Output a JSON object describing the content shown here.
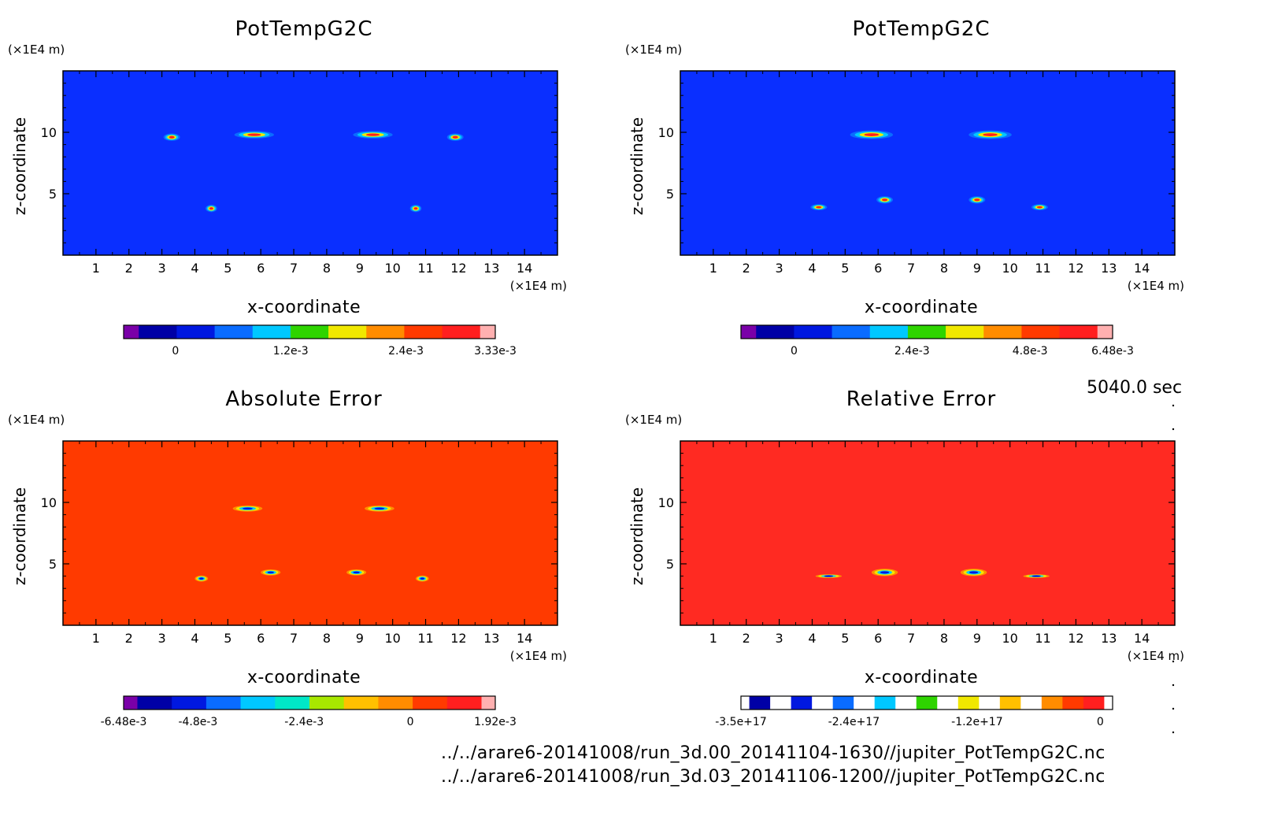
{
  "time_label": "5040.0 sec",
  "footer": [
    "../../arare6-20141008/run_3d.00_20141104-1630//jupiter_PotTempG2C.nc",
    "../../arare6-20141008/run_3d.03_20141106-1200//jupiter_PotTempG2C.nc"
  ],
  "chart_data": [
    {
      "type": "heatmap",
      "title": "PotTempG2C",
      "xlabel": "x-coordinate",
      "ylabel": "z-coordinate",
      "x_unit": "(×1E4 m)",
      "y_unit": "(×1E4 m)",
      "xlim": [
        0,
        15
      ],
      "ylim": [
        0,
        15
      ],
      "x_ticks": [
        "1",
        "2",
        "3",
        "4",
        "5",
        "6",
        "7",
        "8",
        "9",
        "10",
        "11",
        "12",
        "13",
        "14"
      ],
      "y_ticks": [
        "5",
        "10"
      ],
      "background_color": "#0a2fff",
      "features": [
        {
          "x": 3.3,
          "z": 9.6,
          "w": 0.5,
          "h": 0.6
        },
        {
          "x": 5.8,
          "z": 9.8,
          "w": 1.2,
          "h": 0.6
        },
        {
          "x": 9.4,
          "z": 9.8,
          "w": 1.2,
          "h": 0.6
        },
        {
          "x": 11.9,
          "z": 9.6,
          "w": 0.5,
          "h": 0.6
        },
        {
          "x": 4.5,
          "z": 3.8,
          "w": 0.35,
          "h": 0.6
        },
        {
          "x": 10.7,
          "z": 3.8,
          "w": 0.35,
          "h": 0.6
        }
      ],
      "colorbar": {
        "colors": [
          "#7a00a8",
          "#0000a6",
          "#0018e0",
          "#0a6cff",
          "#00c8ff",
          "#2ed400",
          "#f0e800",
          "#ff8c00",
          "#ff3a00",
          "#ff1f1f",
          "#ffb0b0"
        ],
        "labels": [
          "0",
          "1.2e-3",
          "2.4e-3",
          "3.33e-3"
        ],
        "label_values": [
          0,
          0.0012,
          0.0024,
          0.00333
        ],
        "range": [
          -0.00054,
          0.00333
        ]
      }
    },
    {
      "type": "heatmap",
      "title": "PotTempG2C",
      "xlabel": "x-coordinate",
      "ylabel": "z-coordinate",
      "x_unit": "(×1E4 m)",
      "y_unit": "(×1E4 m)",
      "xlim": [
        0,
        15
      ],
      "ylim": [
        0,
        15
      ],
      "x_ticks": [
        "1",
        "2",
        "3",
        "4",
        "5",
        "6",
        "7",
        "8",
        "9",
        "10",
        "11",
        "12",
        "13",
        "14"
      ],
      "y_ticks": [
        "5",
        "10"
      ],
      "background_color": "#0a2fff",
      "features": [
        {
          "x": 5.8,
          "z": 9.8,
          "w": 1.3,
          "h": 0.7
        },
        {
          "x": 9.4,
          "z": 9.8,
          "w": 1.3,
          "h": 0.7
        },
        {
          "x": 4.2,
          "z": 3.9,
          "w": 0.5,
          "h": 0.5
        },
        {
          "x": 6.2,
          "z": 4.5,
          "w": 0.5,
          "h": 0.6
        },
        {
          "x": 9.0,
          "z": 4.5,
          "w": 0.5,
          "h": 0.6
        },
        {
          "x": 10.9,
          "z": 3.9,
          "w": 0.5,
          "h": 0.5
        }
      ],
      "colorbar": {
        "colors": [
          "#7a00a8",
          "#0000a6",
          "#0018e0",
          "#0a6cff",
          "#00c8ff",
          "#2ed400",
          "#f0e800",
          "#ff8c00",
          "#ff3a00",
          "#ff1f1f",
          "#ffb0b0"
        ],
        "labels": [
          "0",
          "2.4e-3",
          "4.8e-3",
          "6.48e-3"
        ],
        "label_values": [
          0,
          0.0024,
          0.0048,
          0.00648
        ],
        "range": [
          -0.00108,
          0.00648
        ]
      }
    },
    {
      "type": "heatmap",
      "title": "Absolute Error",
      "xlabel": "x-coordinate",
      "ylabel": "z-coordinate",
      "x_unit": "(×1E4 m)",
      "y_unit": "(×1E4 m)",
      "xlim": [
        0,
        15
      ],
      "ylim": [
        0,
        15
      ],
      "x_ticks": [
        "1",
        "2",
        "3",
        "4",
        "5",
        "6",
        "7",
        "8",
        "9",
        "10",
        "11",
        "12",
        "13",
        "14"
      ],
      "y_ticks": [
        "5",
        "10"
      ],
      "background_color": "#ff3a00",
      "features": [
        {
          "x": 5.6,
          "z": 9.5,
          "w": 0.9,
          "h": 0.5
        },
        {
          "x": 9.6,
          "z": 9.5,
          "w": 0.9,
          "h": 0.5
        },
        {
          "x": 4.2,
          "z": 3.8,
          "w": 0.4,
          "h": 0.5
        },
        {
          "x": 6.3,
          "z": 4.3,
          "w": 0.6,
          "h": 0.5
        },
        {
          "x": 8.9,
          "z": 4.3,
          "w": 0.6,
          "h": 0.5
        },
        {
          "x": 10.9,
          "z": 3.8,
          "w": 0.4,
          "h": 0.5
        }
      ],
      "colorbar": {
        "colors": [
          "#7a00a8",
          "#0000a6",
          "#0018e0",
          "#0a6cff",
          "#00c8ff",
          "#00e8c8",
          "#a8e800",
          "#ffc000",
          "#ff8c00",
          "#ff3a00",
          "#ff1f1f",
          "#ffb0b0"
        ],
        "labels": [
          "-6.48e-3",
          "-4.8e-3",
          "-2.4e-3",
          "0",
          "1.92e-3"
        ],
        "label_values": [
          -0.00648,
          -0.0048,
          -0.0024,
          0,
          0.00192
        ],
        "range": [
          -0.00648,
          0.00192
        ]
      }
    },
    {
      "type": "heatmap",
      "title": "Relative Error",
      "xlabel": "x-coordinate",
      "ylabel": "z-coordinate",
      "x_unit": "(×1E4 m)",
      "y_unit": "(×1E4 m)",
      "xlim": [
        0,
        15
      ],
      "ylim": [
        0,
        15
      ],
      "x_ticks": [
        "1",
        "2",
        "3",
        "4",
        "5",
        "6",
        "7",
        "8",
        "9",
        "10",
        "11",
        "12",
        "13",
        "14"
      ],
      "y_ticks": [
        "5",
        "10"
      ],
      "background_color": "#ff2a22",
      "features": [
        {
          "x": 6.2,
          "z": 4.3,
          "w": 0.8,
          "h": 0.6
        },
        {
          "x": 8.9,
          "z": 4.3,
          "w": 0.8,
          "h": 0.6
        },
        {
          "x": 4.5,
          "z": 4.0,
          "w": 0.8,
          "h": 0.3
        },
        {
          "x": 10.8,
          "z": 4.0,
          "w": 0.8,
          "h": 0.3
        }
      ],
      "colorbar": {
        "colors": [
          "#ffffff",
          "#0000a6",
          "#ffffff",
          "#0018e0",
          "#ffffff",
          "#0a6cff",
          "#ffffff",
          "#00c8ff",
          "#ffffff",
          "#2ed400",
          "#ffffff",
          "#f0e800",
          "#ffffff",
          "#ffc000",
          "#ffffff",
          "#ff8c00",
          "#ff3a00",
          "#ff1f1f",
          "#ffffff"
        ],
        "labels": [
          "-3.5e+17",
          "-2.4e+17",
          "-1.2e+17",
          "0"
        ],
        "label_values": [
          -3.5e+17,
          -2.4e+17,
          -1.2e+17,
          0
        ],
        "range": [
          -3.5e+17,
          1.2e+16
        ]
      }
    }
  ]
}
